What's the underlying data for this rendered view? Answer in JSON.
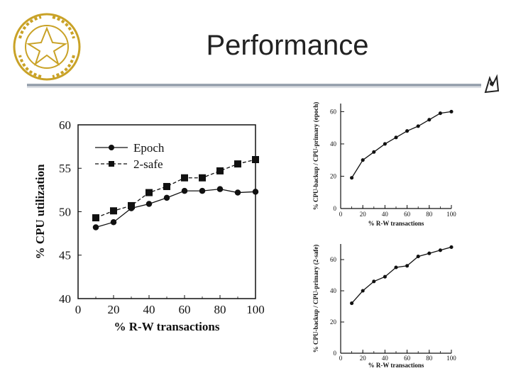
{
  "slide": {
    "title": "Performance",
    "logo_text": "PURDUE UNIVERSITY"
  },
  "colors": {
    "rule": "#9aa4b0",
    "ink": "#111111",
    "title": "#222222"
  },
  "chart_data": [
    {
      "type": "line",
      "title": "",
      "xlabel": "% R-W transactions",
      "ylabel": "% CPU utilization",
      "x": [
        10,
        20,
        30,
        40,
        50,
        60,
        70,
        80,
        90,
        100
      ],
      "xlim": [
        0,
        100
      ],
      "ylim": [
        40,
        60
      ],
      "xticks": [
        "0",
        "20",
        "40",
        "60",
        "80",
        "100"
      ],
      "yticks": [
        "40",
        "45",
        "50",
        "55",
        "60"
      ],
      "legend": "top-left",
      "series": [
        {
          "name": "Epoch",
          "style": "solid-circle",
          "values": [
            48.2,
            48.8,
            50.4,
            50.9,
            51.6,
            52.4,
            52.4,
            52.6,
            52.2,
            52.3
          ]
        },
        {
          "name": "2-safe",
          "style": "dashed-square",
          "values": [
            49.3,
            50.1,
            50.7,
            52.2,
            52.9,
            53.9,
            53.9,
            54.7,
            55.5,
            56.0
          ]
        }
      ]
    },
    {
      "type": "line",
      "title": "",
      "xlabel": "% R-W transactions",
      "ylabel": "% CPU-backup / CPU-primary (epoch)",
      "x": [
        10,
        20,
        30,
        40,
        50,
        60,
        70,
        80,
        90,
        100
      ],
      "xlim": [
        0,
        100
      ],
      "ylim": [
        0,
        65
      ],
      "xticks": [
        "0",
        "20",
        "40",
        "60",
        "80",
        "100"
      ],
      "yticks": [
        "0",
        "20",
        "40",
        "60"
      ],
      "series": [
        {
          "name": "epoch",
          "style": "solid-circle",
          "values": [
            19,
            30,
            35,
            40,
            44,
            48,
            51,
            55,
            59,
            60
          ]
        }
      ]
    },
    {
      "type": "line",
      "title": "",
      "xlabel": "% R-W transactions",
      "ylabel": "% CPU-backup / CPU-primary (2-safe)",
      "x": [
        10,
        20,
        30,
        40,
        50,
        60,
        70,
        80,
        90,
        100
      ],
      "xlim": [
        0,
        100
      ],
      "ylim": [
        0,
        70
      ],
      "xticks": [
        "0",
        "20",
        "40",
        "60",
        "80",
        "100"
      ],
      "yticks": [
        "0",
        "20",
        "40",
        "60"
      ],
      "series": [
        {
          "name": "2-safe",
          "style": "solid-circle",
          "values": [
            32,
            40,
            46,
            49,
            55,
            56,
            62,
            64,
            66,
            68
          ]
        }
      ]
    }
  ]
}
